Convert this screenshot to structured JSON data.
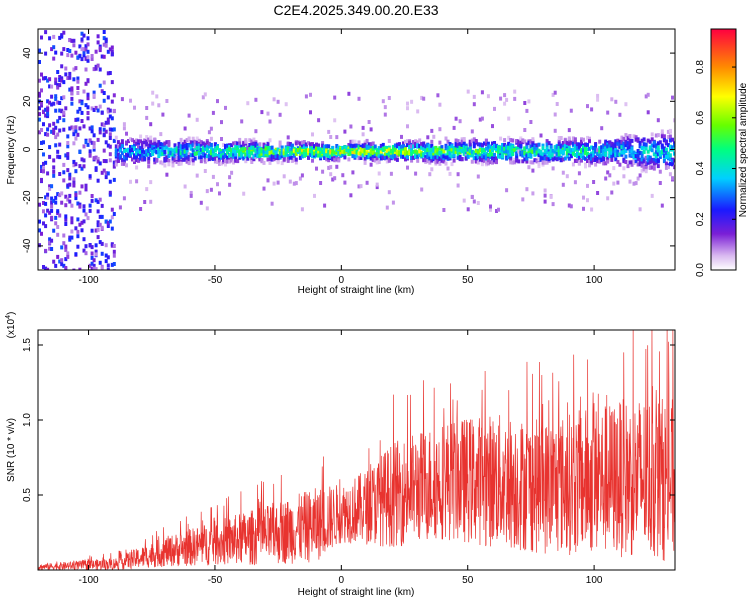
{
  "title": "C2E4.2025.349.00.20.E33",
  "chart_data": [
    {
      "type": "heatmap",
      "xlabel": "Height of straight line (km)",
      "ylabel": "Frequency (Hz)",
      "xlim": [
        -120,
        132
      ],
      "ylim": [
        -50,
        50
      ],
      "xticks": [
        -100,
        -50,
        0,
        50,
        100
      ],
      "yticks": [
        -40,
        -20,
        0,
        20,
        40
      ],
      "colorbar": {
        "label": "Normalized spectral amplitude",
        "range": [
          0.0,
          0.95
        ],
        "ticks": [
          "0.0",
          "0.2",
          "0.4",
          "0.6",
          "0.8"
        ]
      },
      "description_points": [
        {
          "x": -120,
          "band_halfwidth": 50,
          "amplitude": 0.2
        },
        {
          "x": -95,
          "band_halfwidth": 50,
          "amplitude": 0.2
        },
        {
          "x": -90,
          "band_halfwidth": 8,
          "amplitude": 0.35
        },
        {
          "x": -50,
          "band_halfwidth": 6,
          "amplitude": 0.5
        },
        {
          "x": 0,
          "band_halfwidth": 4,
          "amplitude": 0.7
        },
        {
          "x": 50,
          "band_halfwidth": 6,
          "amplitude": 0.55
        },
        {
          "x": 100,
          "band_halfwidth": 7,
          "amplitude": 0.45
        },
        {
          "x": 130,
          "band_halfwidth": 12,
          "amplitude": 0.4
        }
      ]
    },
    {
      "type": "line",
      "xlabel": "Height of straight line (km)",
      "ylabel": "SNR (10 * v/v)",
      "y_multiplier": "(x10",
      "y_multiplier_exp": "4",
      "xlim": [
        -120,
        132
      ],
      "ylim": [
        0,
        1.6
      ],
      "xticks": [
        -100,
        -50,
        0,
        50,
        100
      ],
      "yticks": [
        "0.5",
        "1.0",
        "1.5"
      ],
      "color": "#e8332f",
      "envelope": [
        {
          "x": -120,
          "mean": 0.02,
          "spread": 0.02
        },
        {
          "x": -90,
          "mean": 0.04,
          "spread": 0.04
        },
        {
          "x": -70,
          "mean": 0.12,
          "spread": 0.1
        },
        {
          "x": -50,
          "mean": 0.18,
          "spread": 0.15
        },
        {
          "x": -30,
          "mean": 0.23,
          "spread": 0.2
        },
        {
          "x": -10,
          "mean": 0.3,
          "spread": 0.25
        },
        {
          "x": 0,
          "mean": 0.38,
          "spread": 0.2
        },
        {
          "x": 10,
          "mean": 0.42,
          "spread": 0.25
        },
        {
          "x": 20,
          "mean": 0.5,
          "spread": 0.35
        },
        {
          "x": 40,
          "mean": 0.6,
          "spread": 0.4
        },
        {
          "x": 60,
          "mean": 0.6,
          "spread": 0.45
        },
        {
          "x": 80,
          "mean": 0.55,
          "spread": 0.45
        },
        {
          "x": 100,
          "mean": 0.6,
          "spread": 0.5
        },
        {
          "x": 120,
          "mean": 0.62,
          "spread": 0.55
        },
        {
          "x": 132,
          "mean": 0.6,
          "spread": 0.55
        }
      ]
    }
  ]
}
